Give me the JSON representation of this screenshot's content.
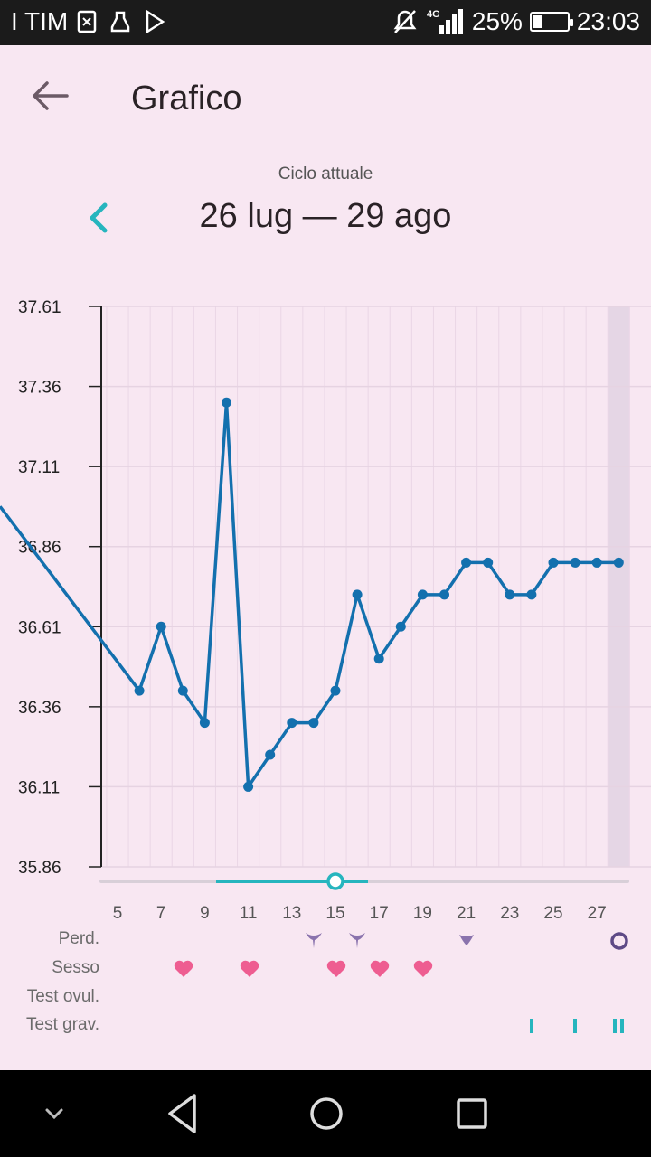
{
  "status_bar": {
    "carrier": "I TIM",
    "network": "4G",
    "battery": "25%",
    "battery_level": 0.25,
    "time": "23:03",
    "icons": [
      "signal-icon",
      "battery-icon",
      "mute-icon",
      "play-store-icon"
    ]
  },
  "app_bar": {
    "title": "Grafico"
  },
  "cycle": {
    "subtitle": "Ciclo attuale",
    "range": "26 lug — 29 ago"
  },
  "chart_data": {
    "type": "line",
    "y_ticks": [
      "37.61",
      "37.36",
      "37.11",
      "36.86",
      "36.61",
      "36.36",
      "36.11",
      "35.86"
    ],
    "ylim": [
      35.86,
      37.61
    ],
    "x_ticks": [
      "5",
      "7",
      "9",
      "11",
      "13",
      "15",
      "17",
      "19",
      "21",
      "23",
      "25",
      "27"
    ],
    "xlim": [
      4,
      28
    ],
    "series": [
      {
        "color": "#1370ae",
        "x": [
          5,
          6,
          7,
          8,
          9,
          10,
          11,
          12,
          13,
          14,
          15,
          16,
          17,
          18,
          19,
          20,
          21,
          22,
          23,
          24,
          25,
          26,
          27,
          28
        ],
        "y": [
          36.5,
          36.41,
          36.61,
          36.41,
          36.31,
          37.31,
          36.11,
          36.21,
          36.31,
          36.31,
          36.41,
          36.71,
          36.51,
          36.61,
          36.71,
          36.71,
          36.81,
          36.81,
          36.71,
          36.71,
          36.81,
          36.81,
          36.81,
          36.81
        ]
      }
    ],
    "selected_day": 15,
    "highlight_day": 28,
    "rows": [
      {
        "label": "Perd.",
        "marks": [
          {
            "day": 14,
            "icon": "drop-icon"
          },
          {
            "day": 16,
            "icon": "drop-icon"
          },
          {
            "day": 21,
            "icon": "drop-small-icon"
          },
          {
            "day": 28,
            "icon": "ring-icon"
          }
        ]
      },
      {
        "label": "Sesso",
        "marks": [
          {
            "day": 8,
            "icon": "heart-icon"
          },
          {
            "day": 11,
            "icon": "heart-icon"
          },
          {
            "day": 15,
            "icon": "heart-icon"
          },
          {
            "day": 17,
            "icon": "heart-icon"
          },
          {
            "day": 19,
            "icon": "heart-icon"
          }
        ]
      },
      {
        "label": "Test ovul.",
        "marks": []
      },
      {
        "label": "Test grav.",
        "marks": [
          {
            "day": 24,
            "icon": "bar-icon"
          },
          {
            "day": 26,
            "icon": "bar-icon"
          },
          {
            "day": 28,
            "icon": "double-bar-icon"
          }
        ]
      }
    ]
  },
  "colors": {
    "background": "#f8e7f2",
    "line": "#1370ae",
    "accent": "#26b5be",
    "heart": "#ee5d91",
    "drop": "#8a73ad"
  }
}
